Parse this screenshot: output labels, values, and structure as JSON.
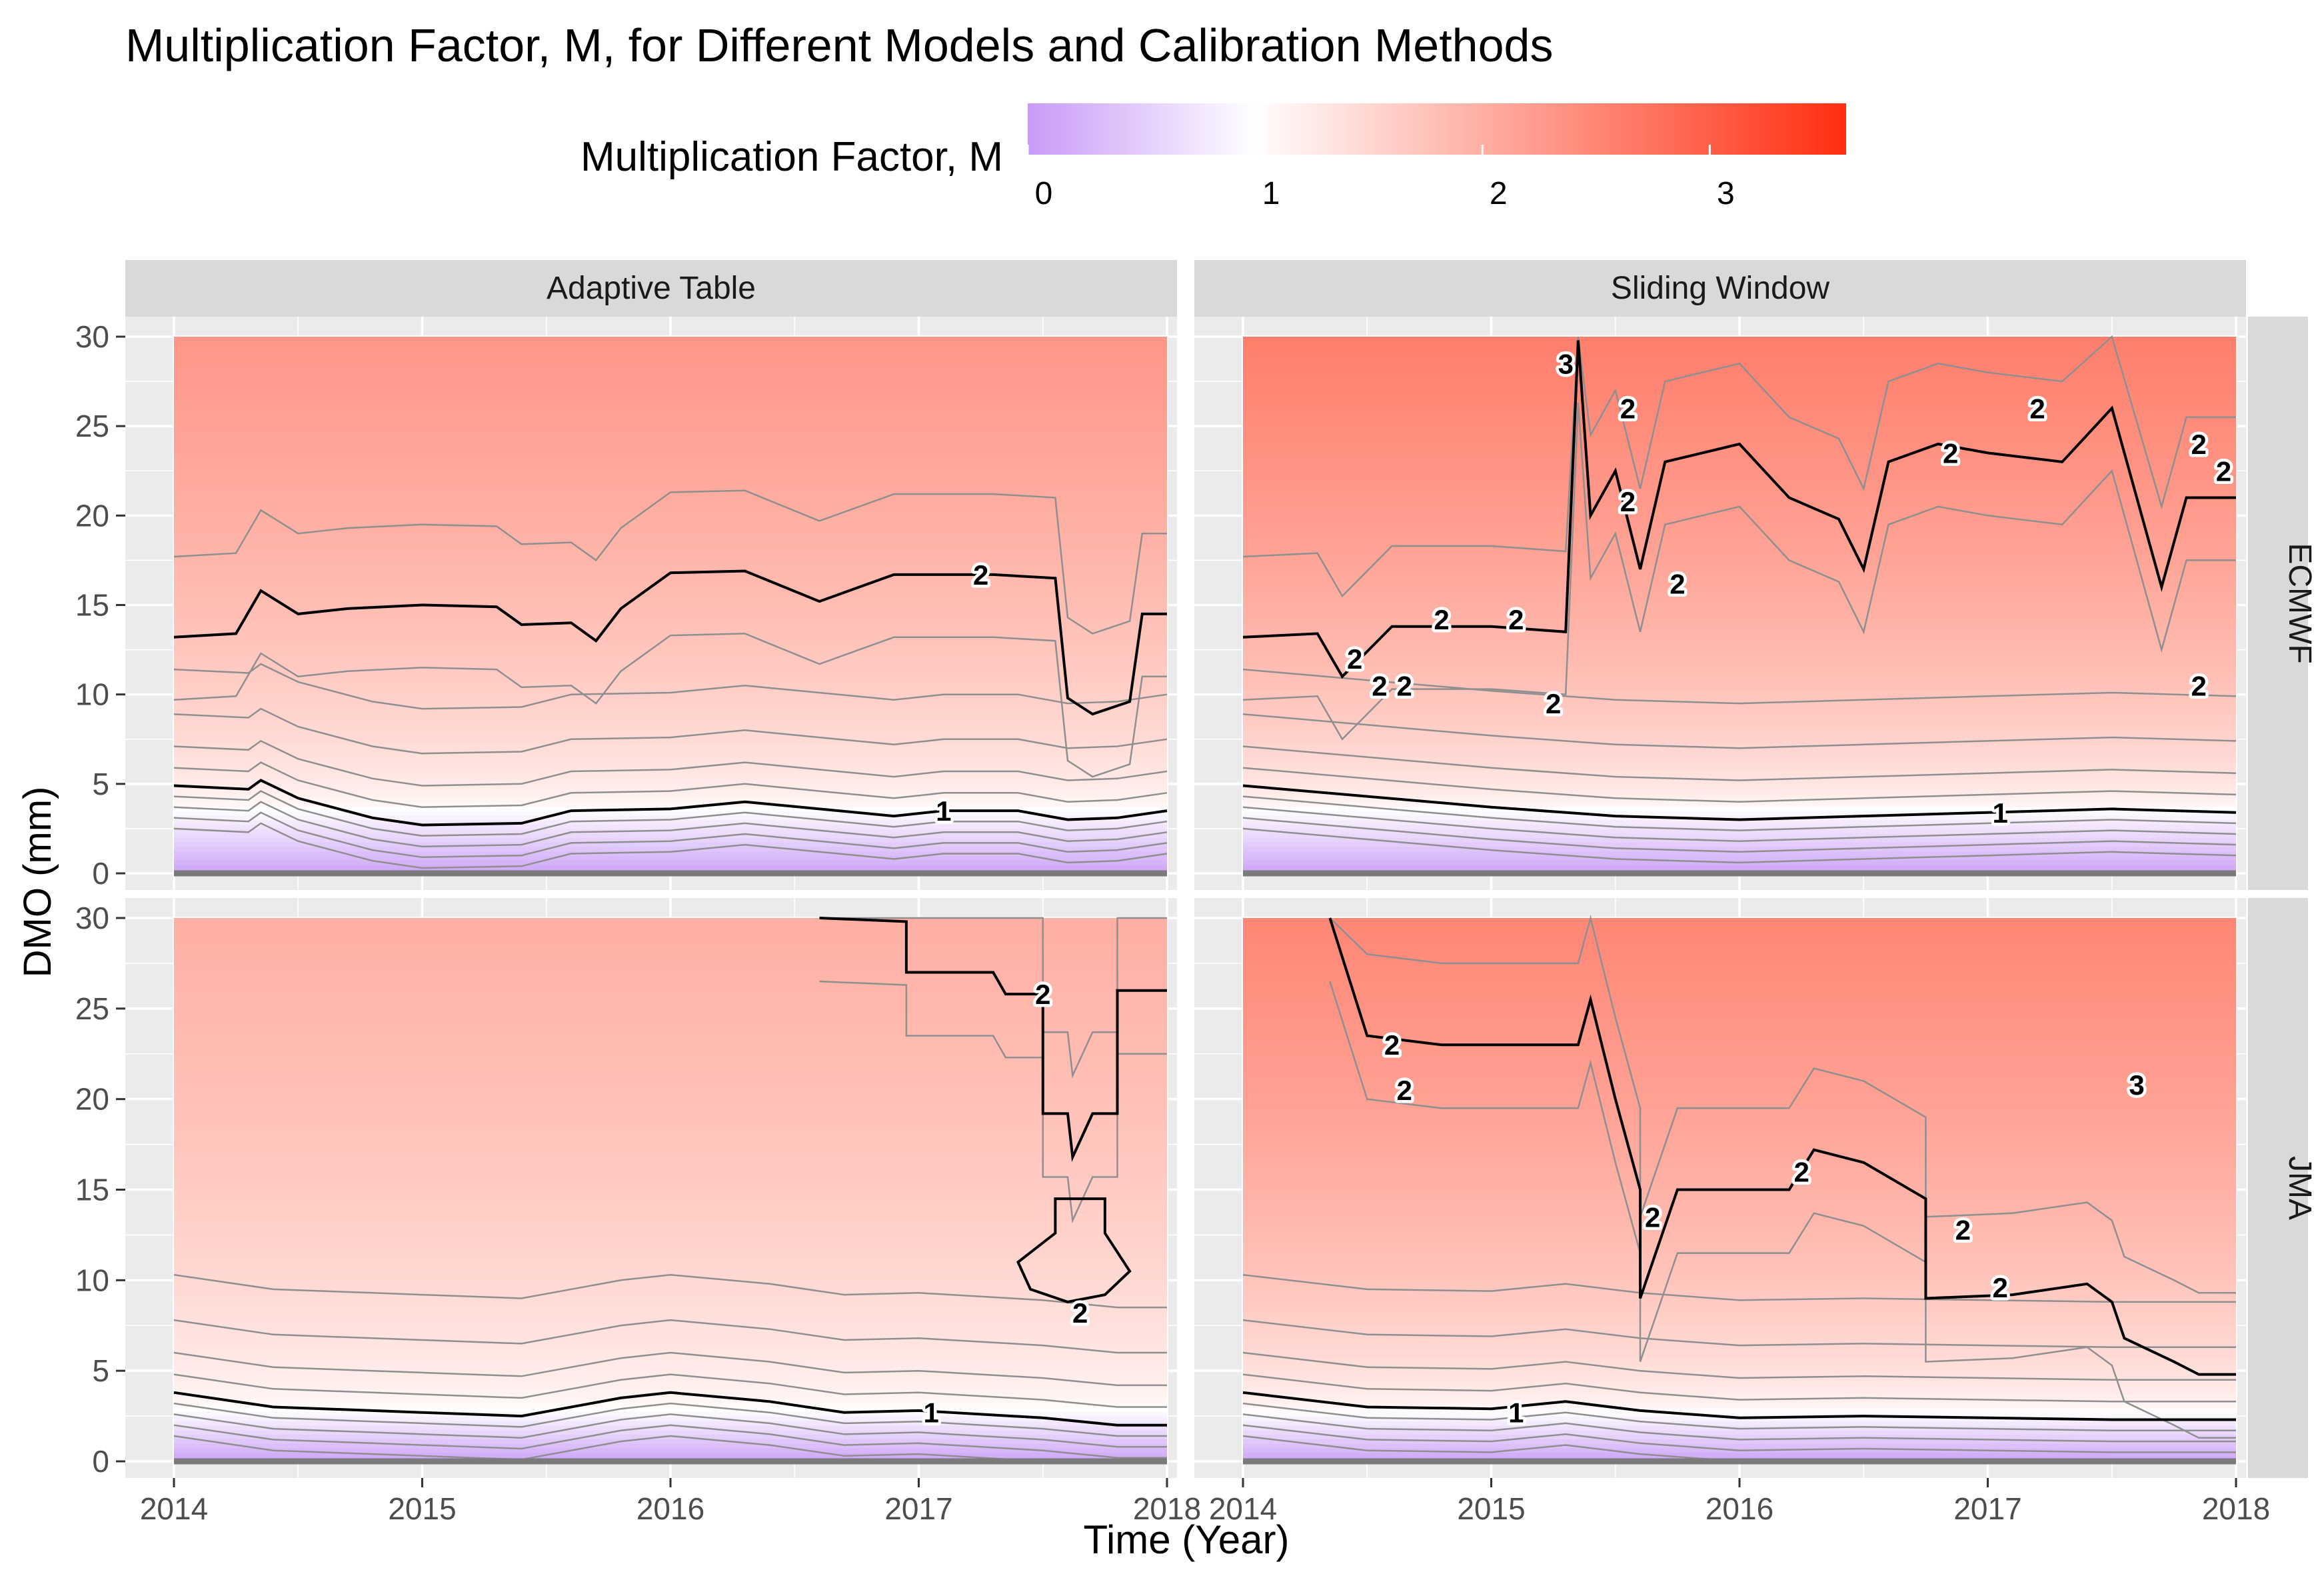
{
  "colors": {
    "low": "#c79bf7",
    "mid": "#ffffff",
    "high": "#ff2e10",
    "panel_bg": "#ebebeb",
    "strip_bg": "#d9d9d9",
    "grid": "#ffffff",
    "contour_minor": "#8f8f8f",
    "contour_major": "#000000"
  },
  "chart_data": {
    "type": "heatmap",
    "title": "Multiplication Factor, M, for Different Models and Calibration Methods",
    "xlabel": "Time (Year)",
    "ylabel": "DMO (mm)",
    "xlim": [
      2014,
      2018
    ],
    "ylim": [
      0,
      30
    ],
    "x_ticks": [
      "2014",
      "2015",
      "2016",
      "2017",
      "2018"
    ],
    "y_ticks": [
      "0",
      "5",
      "10",
      "15",
      "20",
      "25",
      "30"
    ],
    "legend": {
      "title": "Multiplication Factor, M",
      "position": "top",
      "range": [
        0,
        3.6
      ],
      "ticks": [
        "0",
        "1",
        "2",
        "3"
      ]
    },
    "column_strips": [
      "Adaptive Table",
      "Sliding Window"
    ],
    "row_strips": [
      "ECMWF",
      "JMA"
    ],
    "panels": [
      {
        "model": "ECMWF",
        "method": "Adaptive Table",
        "m_at_30mm": 2.3,
        "contour_1": [
          [
            2014.0,
            4.9
          ],
          [
            2014.3,
            4.7
          ],
          [
            2014.35,
            5.2
          ],
          [
            2014.5,
            4.2
          ],
          [
            2014.8,
            3.1
          ],
          [
            2015.0,
            2.7
          ],
          [
            2015.4,
            2.8
          ],
          [
            2015.6,
            3.5
          ],
          [
            2016.0,
            3.6
          ],
          [
            2016.3,
            4.0
          ],
          [
            2016.6,
            3.6
          ],
          [
            2016.9,
            3.2
          ],
          [
            2017.1,
            3.5
          ],
          [
            2017.4,
            3.5
          ],
          [
            2017.6,
            3.0
          ],
          [
            2017.8,
            3.1
          ],
          [
            2018.0,
            3.5
          ]
        ],
        "contour_2": [
          [
            2014.0,
            13.2
          ],
          [
            2014.25,
            13.4
          ],
          [
            2014.35,
            15.8
          ],
          [
            2014.5,
            14.5
          ],
          [
            2014.7,
            14.8
          ],
          [
            2015.0,
            15.0
          ],
          [
            2015.3,
            14.9
          ],
          [
            2015.4,
            13.9
          ],
          [
            2015.6,
            14.0
          ],
          [
            2015.7,
            13.0
          ],
          [
            2015.8,
            14.8
          ],
          [
            2016.0,
            16.8
          ],
          [
            2016.3,
            16.9
          ],
          [
            2016.6,
            15.2
          ],
          [
            2016.9,
            16.7
          ],
          [
            2017.3,
            16.7
          ],
          [
            2017.55,
            16.5
          ],
          [
            2017.6,
            9.8
          ],
          [
            2017.7,
            8.9
          ],
          [
            2017.85,
            9.6
          ],
          [
            2017.9,
            14.5
          ],
          [
            2018.0,
            14.5
          ]
        ],
        "labels": [
          {
            "text": "2",
            "x": 2017.25,
            "y": 16.7
          },
          {
            "text": "1",
            "x": 2017.1,
            "y": 3.5
          }
        ]
      },
      {
        "model": "ECMWF",
        "method": "Sliding Window",
        "m_at_30mm": 2.6,
        "contour_1": [
          [
            2014.0,
            4.9
          ],
          [
            2014.5,
            4.3
          ],
          [
            2015.0,
            3.7
          ],
          [
            2015.5,
            3.2
          ],
          [
            2016.0,
            3.0
          ],
          [
            2016.5,
            3.2
          ],
          [
            2017.0,
            3.4
          ],
          [
            2017.5,
            3.6
          ],
          [
            2018.0,
            3.4
          ]
        ],
        "contour_2": [
          [
            2014.0,
            13.2
          ],
          [
            2014.3,
            13.4
          ],
          [
            2014.4,
            11.0
          ],
          [
            2014.6,
            13.8
          ],
          [
            2015.0,
            13.8
          ],
          [
            2015.3,
            13.5
          ],
          [
            2015.35,
            29.8
          ],
          [
            2015.4,
            20.0
          ],
          [
            2015.5,
            22.5
          ],
          [
            2015.6,
            17.0
          ],
          [
            2015.7,
            23.0
          ],
          [
            2016.0,
            24.0
          ],
          [
            2016.2,
            21.0
          ],
          [
            2016.4,
            19.8
          ],
          [
            2016.5,
            17.0
          ],
          [
            2016.6,
            23.0
          ],
          [
            2016.8,
            24.0
          ],
          [
            2017.0,
            23.5
          ],
          [
            2017.3,
            23.0
          ],
          [
            2017.5,
            26.0
          ],
          [
            2017.7,
            16.0
          ],
          [
            2017.8,
            21.0
          ],
          [
            2018.0,
            21.0
          ]
        ],
        "labels": [
          {
            "text": "3",
            "x": 2015.3,
            "y": 28.5
          },
          {
            "text": "2",
            "x": 2015.55,
            "y": 26.0
          },
          {
            "text": "2",
            "x": 2015.55,
            "y": 20.8
          },
          {
            "text": "2",
            "x": 2015.75,
            "y": 16.2
          },
          {
            "text": "2",
            "x": 2014.8,
            "y": 14.2
          },
          {
            "text": "2",
            "x": 2015.1,
            "y": 14.2
          },
          {
            "text": "2",
            "x": 2014.45,
            "y": 12.0
          },
          {
            "text": "2",
            "x": 2014.55,
            "y": 10.5
          },
          {
            "text": "2",
            "x": 2014.65,
            "y": 10.5
          },
          {
            "text": "2",
            "x": 2015.25,
            "y": 9.5
          },
          {
            "text": "2",
            "x": 2016.85,
            "y": 23.5
          },
          {
            "text": "2",
            "x": 2017.2,
            "y": 26.0
          },
          {
            "text": "2",
            "x": 2017.95,
            "y": 22.5
          },
          {
            "text": "2",
            "x": 2017.85,
            "y": 24.0
          },
          {
            "text": "2",
            "x": 2017.85,
            "y": 10.5
          },
          {
            "text": "1",
            "x": 2017.05,
            "y": 3.4
          }
        ]
      },
      {
        "model": "JMA",
        "method": "Adaptive Table",
        "m_at_30mm": 2.0,
        "contour_1": [
          [
            2014.0,
            3.8
          ],
          [
            2014.4,
            3.0
          ],
          [
            2014.8,
            2.8
          ],
          [
            2015.0,
            2.7
          ],
          [
            2015.4,
            2.5
          ],
          [
            2015.8,
            3.5
          ],
          [
            2016.0,
            3.8
          ],
          [
            2016.4,
            3.3
          ],
          [
            2016.7,
            2.7
          ],
          [
            2017.0,
            2.8
          ],
          [
            2017.5,
            2.4
          ],
          [
            2017.8,
            2.0
          ],
          [
            2018.0,
            2.0
          ]
        ],
        "contour_2": [
          [
            2016.6,
            30.0
          ],
          [
            2016.95,
            29.8
          ],
          [
            2016.95,
            27.0
          ],
          [
            2017.3,
            27.0
          ],
          [
            2017.35,
            25.8
          ],
          [
            2017.5,
            25.8
          ],
          [
            2017.5,
            19.2
          ],
          [
            2017.6,
            19.2
          ],
          [
            2017.62,
            16.8
          ],
          [
            2017.7,
            19.2
          ],
          [
            2017.8,
            19.2
          ],
          [
            2017.8,
            26.0
          ],
          [
            2018.0,
            26.0
          ]
        ],
        "loop_2": [
          [
            2017.4,
            11.0
          ],
          [
            2017.55,
            12.6
          ],
          [
            2017.55,
            14.5
          ],
          [
            2017.75,
            14.5
          ],
          [
            2017.75,
            12.6
          ],
          [
            2017.85,
            10.5
          ],
          [
            2017.75,
            9.2
          ],
          [
            2017.6,
            8.8
          ],
          [
            2017.45,
            9.5
          ]
        ],
        "labels": [
          {
            "text": "2",
            "x": 2017.5,
            "y": 25.8
          },
          {
            "text": "2",
            "x": 2017.65,
            "y": 8.2
          },
          {
            "text": "1",
            "x": 2017.05,
            "y": 2.7
          }
        ]
      },
      {
        "model": "JMA",
        "method": "Sliding Window",
        "m_at_30mm": 2.5,
        "contour_1": [
          [
            2014.0,
            3.8
          ],
          [
            2014.5,
            3.0
          ],
          [
            2015.0,
            2.9
          ],
          [
            2015.3,
            3.3
          ],
          [
            2015.6,
            2.8
          ],
          [
            2016.0,
            2.4
          ],
          [
            2016.5,
            2.5
          ],
          [
            2017.0,
            2.4
          ],
          [
            2017.5,
            2.3
          ],
          [
            2018.0,
            2.3
          ]
        ],
        "contour_2": [
          [
            2014.35,
            30.0
          ],
          [
            2014.5,
            23.5
          ],
          [
            2014.8,
            23.0
          ],
          [
            2015.35,
            23.0
          ],
          [
            2015.4,
            25.5
          ],
          [
            2015.5,
            20.0
          ],
          [
            2015.6,
            15.0
          ],
          [
            2015.6,
            9.0
          ],
          [
            2015.75,
            15.0
          ],
          [
            2016.2,
            15.0
          ],
          [
            2016.3,
            17.2
          ],
          [
            2016.5,
            16.5
          ],
          [
            2016.75,
            14.5
          ],
          [
            2016.75,
            9.0
          ],
          [
            2017.1,
            9.2
          ],
          [
            2017.4,
            9.8
          ],
          [
            2017.5,
            8.8
          ],
          [
            2017.55,
            6.8
          ],
          [
            2017.75,
            5.5
          ],
          [
            2017.85,
            4.8
          ],
          [
            2018.0,
            4.8
          ]
        ],
        "labels": [
          {
            "text": "2",
            "x": 2014.6,
            "y": 23.0
          },
          {
            "text": "2",
            "x": 2014.65,
            "y": 20.5
          },
          {
            "text": "2",
            "x": 2015.65,
            "y": 13.5
          },
          {
            "text": "2",
            "x": 2016.25,
            "y": 16.0
          },
          {
            "text": "2",
            "x": 2016.9,
            "y": 12.8
          },
          {
            "text": "2",
            "x": 2017.05,
            "y": 9.6
          },
          {
            "text": "3",
            "x": 2017.6,
            "y": 20.8
          },
          {
            "text": "1",
            "x": 2015.1,
            "y": 2.7
          }
        ]
      }
    ]
  }
}
